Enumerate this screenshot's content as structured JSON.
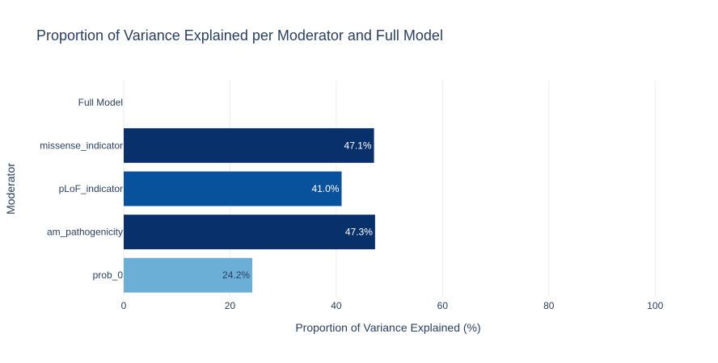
{
  "chart_data": {
    "type": "bar",
    "orientation": "horizontal",
    "title": "Proportion of Variance Explained per Moderator and Full Model",
    "xlabel": "Proportion of Variance Explained (%)",
    "ylabel": "Moderator",
    "xlim": [
      0,
      110
    ],
    "xticks": [
      0,
      20,
      40,
      60,
      80,
      100
    ],
    "xtick_labels": [
      "0",
      "20",
      "40",
      "60",
      "80",
      "100"
    ],
    "grid": true,
    "categories": [
      "prob_0",
      "am_pathogenicity",
      "pLoF_indicator",
      "missense_indicator",
      "Full Model"
    ],
    "values": [
      24.2,
      47.3,
      41.0,
      47.1,
      null
    ],
    "labels": [
      "24.2%",
      "47.3%",
      "41.0%",
      "47.1%",
      ""
    ],
    "colors": [
      "#6baed6",
      "#08306b",
      "#08519c",
      "#08306b",
      "#08306b"
    ],
    "label_colors": [
      "#2a3f5f",
      "#ffffff",
      "#ffffff",
      "#ffffff",
      "#ffffff"
    ]
  }
}
